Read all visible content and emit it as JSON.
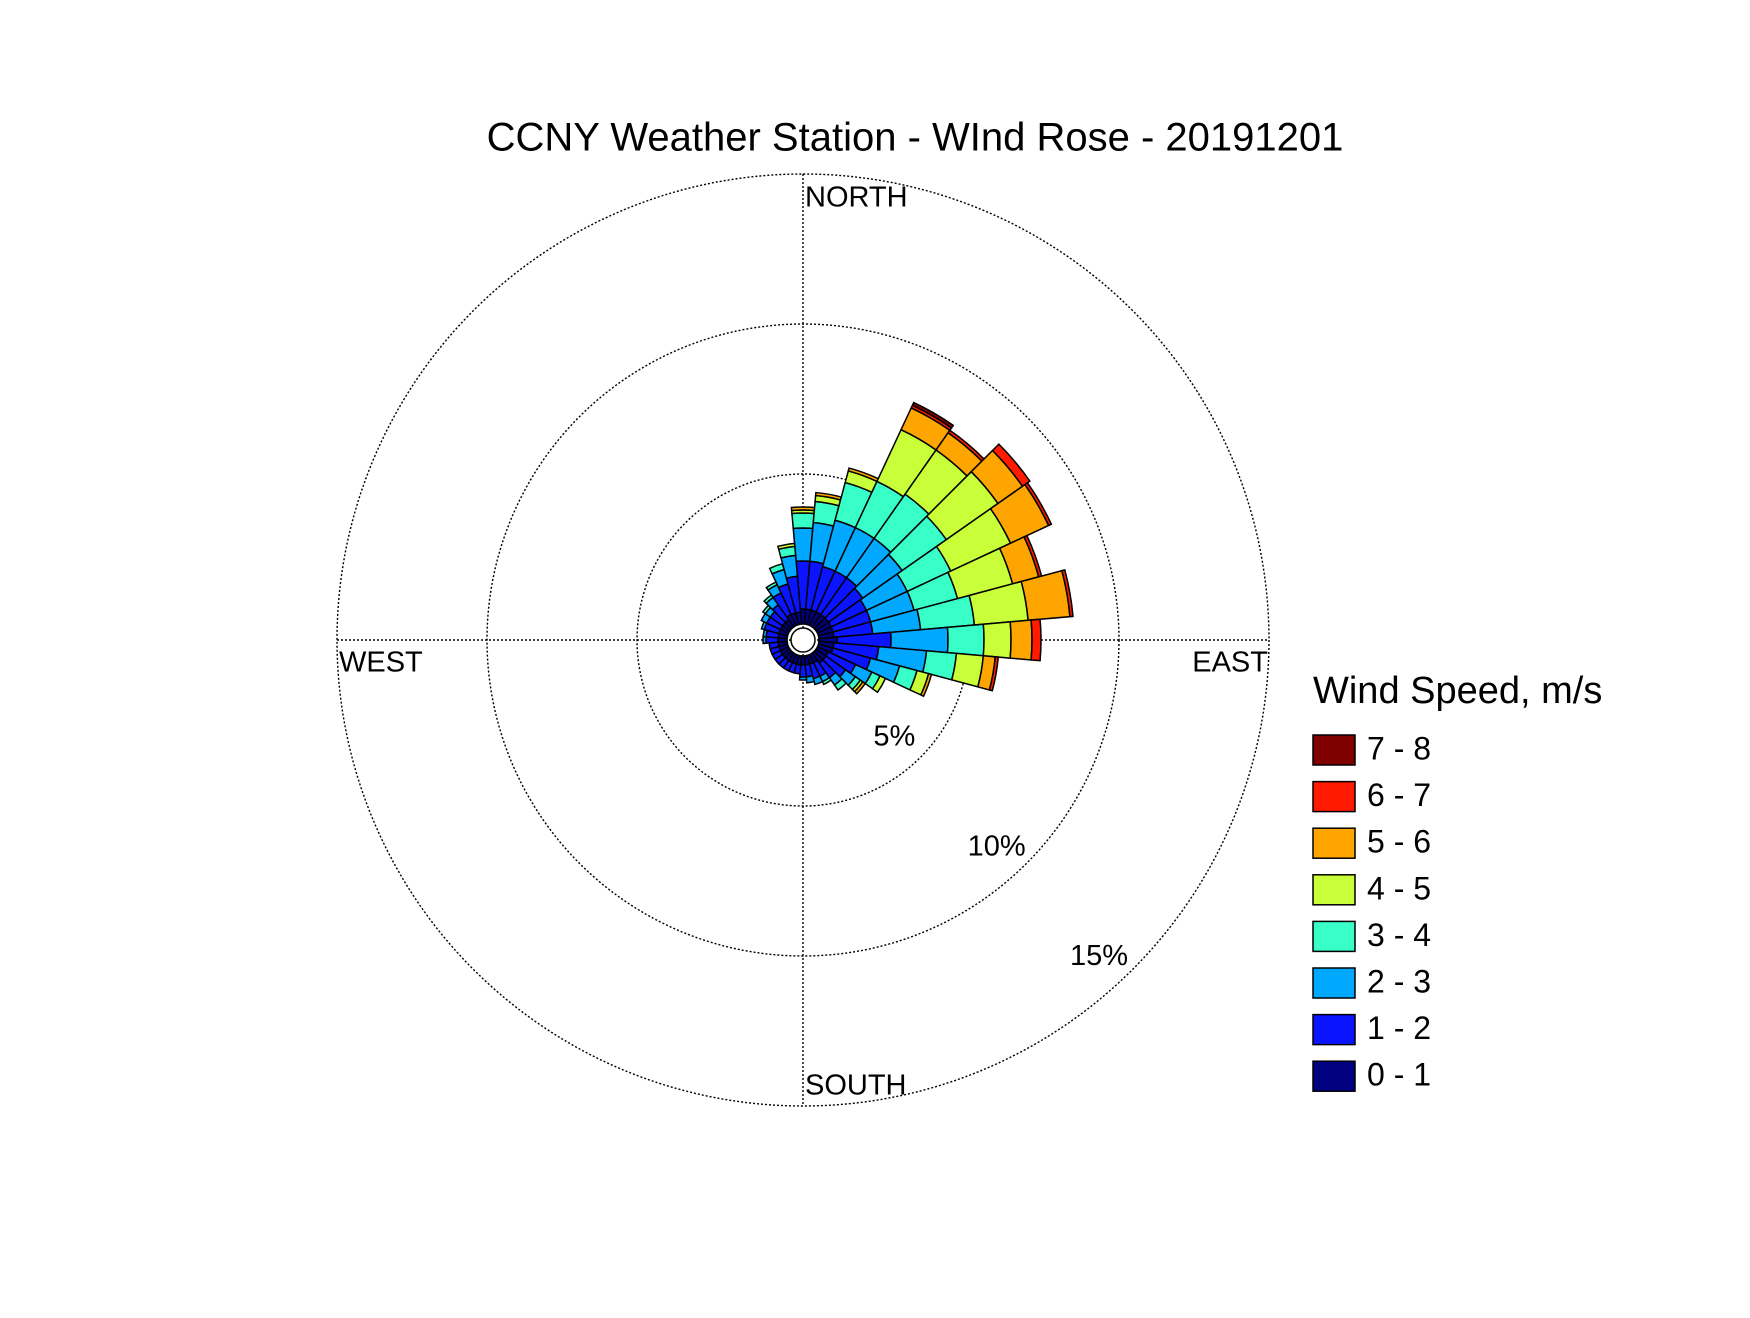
{
  "chart_data": {
    "type": "wind_rose",
    "title": "CCNY Weather Station - WInd Rose - 20191201",
    "direction_labels": {
      "north": "NORTH",
      "east": "EAST",
      "south": "SOUTH",
      "west": "WEST"
    },
    "legend_title": "Wind Speed, m/s",
    "x": [
      0,
      10,
      20,
      30,
      40,
      50,
      60,
      70,
      80,
      90,
      100,
      110,
      120,
      130,
      140,
      150,
      160,
      170,
      180,
      190,
      200,
      210,
      220,
      230,
      240,
      250,
      260,
      270,
      280,
      290,
      300,
      310,
      320,
      330,
      340,
      350
    ],
    "ylim": [
      0,
      15
    ],
    "yticks": [
      {
        "value": 5,
        "label": "5%"
      },
      {
        "value": 10,
        "label": "10%"
      },
      {
        "value": 15,
        "label": "15%"
      }
    ],
    "grid": true,
    "legend": "right",
    "series": [
      {
        "name": "0 - 1",
        "color": "#000080",
        "values": [
          0.5,
          0.5,
          0.5,
          0.5,
          0.5,
          0.5,
          0.5,
          0.5,
          0.5,
          0.6,
          0.5,
          0.5,
          0.4,
          0.4,
          0.4,
          0.3,
          0.3,
          0.3,
          0.3,
          0.3,
          0.3,
          0.3,
          0.3,
          0.3,
          0.3,
          0.3,
          0.3,
          0.3,
          0.3,
          0.3,
          0.3,
          0.3,
          0.3,
          0.4,
          0.4,
          0.4
        ]
      },
      {
        "name": "1 - 2",
        "color": "#0a14ff",
        "values": [
          1.6,
          1.6,
          1.5,
          1.5,
          1.5,
          1.4,
          1.3,
          1.3,
          1.3,
          1.8,
          1.5,
          1.3,
          1.0,
          0.8,
          0.6,
          0.5,
          0.5,
          0.4,
          0.4,
          0.3,
          0.3,
          0.3,
          0.3,
          0.3,
          0.3,
          0.3,
          0.3,
          0.4,
          0.4,
          0.5,
          0.5,
          0.5,
          0.6,
          0.8,
          1.0,
          1.2
        ]
      },
      {
        "name": "2 - 3",
        "color": "#00a8ff",
        "values": [
          1.1,
          1.3,
          1.6,
          1.6,
          1.6,
          1.6,
          1.5,
          1.5,
          1.6,
          1.9,
          1.6,
          1.0,
          0.6,
          0.4,
          0.3,
          0.2,
          0.2,
          0.2,
          0.1,
          0,
          0,
          0,
          0,
          0,
          0,
          0,
          0,
          0.1,
          0.1,
          0.1,
          0.2,
          0.2,
          0.3,
          0.3,
          0.5,
          0.7
        ]
      },
      {
        "name": "3 - 4",
        "color": "#38ffc8",
        "values": [
          0.5,
          0.7,
          1.3,
          1.7,
          1.8,
          1.8,
          1.6,
          1.5,
          1.8,
          1.2,
          1.0,
          0.6,
          0.3,
          0.2,
          0.2,
          0.1,
          0,
          0,
          0,
          0,
          0,
          0,
          0,
          0,
          0,
          0,
          0,
          0,
          0,
          0,
          0,
          0.1,
          0.1,
          0.1,
          0.2,
          0.3
        ]
      },
      {
        "name": "4 - 5",
        "color": "#c8ff38",
        "values": [
          0.1,
          0.2,
          0.4,
          1.9,
          1.8,
          2.1,
          2.2,
          1.9,
          1.8,
          0.9,
          0.9,
          0.4,
          0.2,
          0.1,
          0,
          0,
          0,
          0,
          0,
          0,
          0,
          0,
          0,
          0,
          0,
          0,
          0,
          0,
          0,
          0,
          0,
          0,
          0,
          0,
          0,
          0.1
        ]
      },
      {
        "name": "5 - 6",
        "color": "#ffa500",
        "values": [
          0.1,
          0.1,
          0.1,
          0.8,
          0.7,
          1.0,
          1.4,
          0.9,
          1.4,
          0.7,
          0.4,
          0.1,
          0,
          0.1,
          0,
          0,
          0,
          0,
          0,
          0,
          0,
          0,
          0,
          0,
          0,
          0,
          0,
          0,
          0,
          0,
          0,
          0,
          0,
          0,
          0,
          0
        ]
      },
      {
        "name": "6 - 7",
        "color": "#ff1a00",
        "values": [
          0,
          0,
          0,
          0.1,
          0.1,
          0.3,
          0.1,
          0.1,
          0.1,
          0.3,
          0.1,
          0,
          0,
          0,
          0,
          0,
          0,
          0,
          0,
          0,
          0,
          0,
          0,
          0,
          0,
          0,
          0,
          0,
          0,
          0,
          0,
          0,
          0,
          0,
          0,
          0
        ]
      },
      {
        "name": "7 - 8",
        "color": "#800000",
        "values": [
          0,
          0,
          0,
          0.1,
          0,
          0,
          0,
          0,
          0,
          0,
          0,
          0,
          0,
          0,
          0,
          0,
          0,
          0,
          0,
          0,
          0,
          0,
          0,
          0,
          0,
          0,
          0,
          0,
          0,
          0,
          0,
          0,
          0,
          0,
          0,
          0
        ]
      }
    ]
  }
}
